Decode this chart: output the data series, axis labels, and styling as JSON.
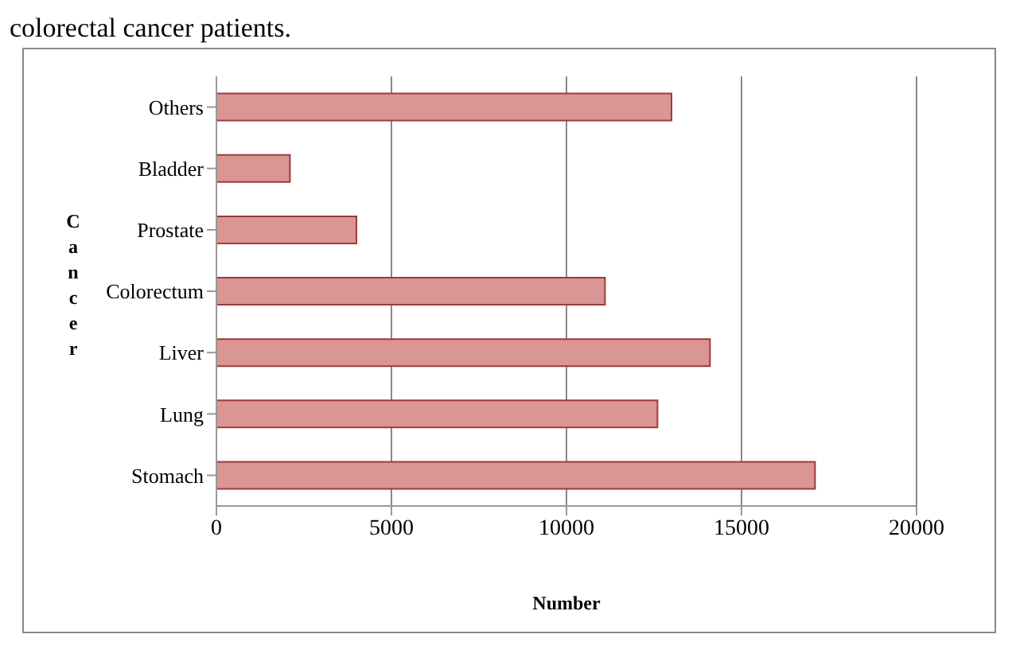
{
  "chart_data": {
    "type": "bar",
    "orientation": "horizontal",
    "annotations": [
      "colorectal cancer patients."
    ],
    "categories": [
      "Others",
      "Bladder",
      "Prostate",
      "Colorectum",
      "Liver",
      "Lung",
      "Stomach"
    ],
    "values": [
      13000,
      2100,
      4000,
      11100,
      14100,
      12600,
      17100
    ],
    "color": "#d99694",
    "xlim": [
      0,
      20000
    ],
    "xticks": [
      0,
      5000,
      10000,
      15000,
      20000
    ],
    "grid": "x",
    "xlabel": "Number",
    "ylabel": "Cancer"
  }
}
